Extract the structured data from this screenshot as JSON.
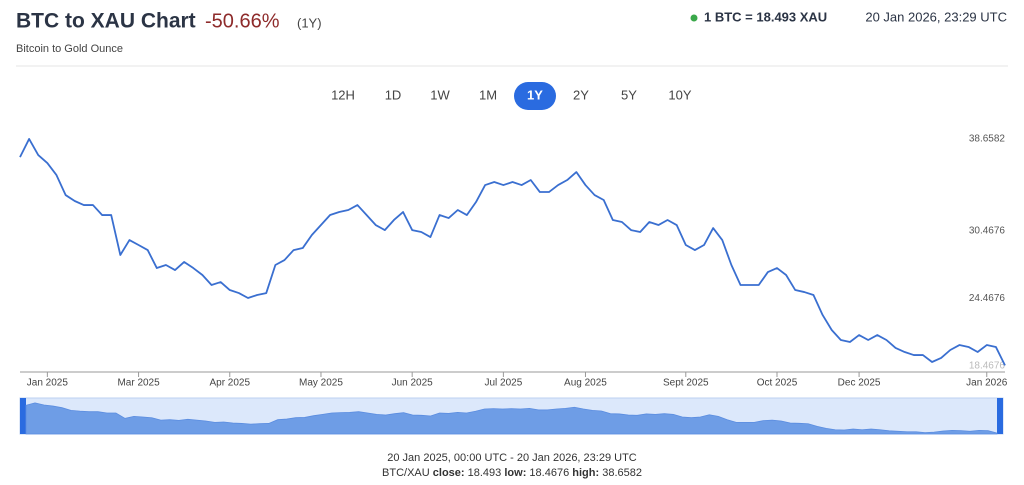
{
  "header": {
    "title": "BTC to XAU Chart",
    "change": "-50.66%",
    "period": "(1Y)",
    "subtitle": "Bitcoin to Gold Ounce",
    "rate": "1 BTC = 18.493 XAU",
    "timestamp": "20 Jan 2026, 23:29 UTC"
  },
  "ranges": {
    "buttons": [
      "12H",
      "1D",
      "1W",
      "1M",
      "1Y",
      "2Y",
      "5Y",
      "10Y"
    ],
    "selected": "1Y"
  },
  "chart_data": {
    "type": "line",
    "color": "#3a6fd0",
    "categories": [
      null,
      null,
      null,
      "Jan 2025",
      null,
      null,
      null,
      null,
      null,
      null,
      null,
      null,
      null,
      "Mar 2025",
      null,
      null,
      null,
      null,
      null,
      null,
      null,
      null,
      null,
      "Apr 2025",
      null,
      null,
      null,
      null,
      null,
      null,
      null,
      null,
      null,
      "May 2025",
      null,
      null,
      null,
      null,
      null,
      null,
      null,
      null,
      null,
      "Jun 2025",
      null,
      null,
      null,
      null,
      null,
      null,
      null,
      null,
      null,
      "Jul 2025",
      null,
      null,
      null,
      null,
      null,
      null,
      null,
      null,
      "Aug 2025",
      null,
      null,
      null,
      null,
      null,
      null,
      null,
      null,
      null,
      null,
      "Sept 2025",
      null,
      null,
      null,
      null,
      null,
      null,
      null,
      null,
      null,
      "Oct 2025",
      null,
      null,
      null,
      null,
      null,
      null,
      null,
      null,
      "Dec 2025",
      null,
      null,
      null,
      null,
      null,
      null,
      null,
      null,
      null,
      null,
      null,
      null,
      null,
      "Jan 2026",
      null,
      null
    ],
    "values": [
      37.04,
      38.66,
      37.22,
      36.51,
      35.44,
      33.66,
      33.13,
      32.77,
      32.77,
      31.88,
      31.88,
      28.32,
      29.65,
      29.21,
      28.76,
      27.16,
      27.43,
      26.98,
      27.7,
      27.16,
      26.54,
      25.65,
      25.91,
      25.2,
      24.93,
      24.49,
      24.76,
      24.93,
      27.43,
      27.87,
      28.76,
      28.94,
      30.1,
      30.99,
      31.88,
      32.15,
      32.33,
      32.77,
      31.88,
      30.99,
      30.54,
      31.44,
      32.15,
      30.54,
      30.37,
      29.92,
      31.88,
      31.61,
      32.33,
      31.88,
      33.04,
      34.55,
      34.82,
      34.55,
      34.82,
      34.55,
      35.0,
      33.93,
      33.93,
      34.55,
      35.0,
      35.71,
      34.55,
      33.66,
      33.22,
      31.44,
      31.26,
      30.54,
      30.37,
      31.26,
      30.99,
      31.44,
      30.99,
      29.21,
      28.76,
      29.21,
      30.72,
      29.65,
      27.43,
      25.65,
      25.65,
      25.65,
      26.8,
      27.16,
      26.54,
      25.2,
      25.02,
      24.76,
      22.98,
      21.64,
      20.75,
      20.57,
      21.19,
      20.75,
      21.19,
      20.75,
      20.04,
      19.68,
      19.41,
      19.41,
      18.79,
      19.15,
      19.86,
      20.3,
      20.13,
      19.68,
      20.3,
      20.13,
      18.493
    ],
    "ylim": [
      17.9,
      39.9
    ],
    "yticks": [
      18.4676,
      24.4676,
      30.4676,
      38.6582
    ],
    "grid": false
  },
  "footer": {
    "range": "20 Jan 2025, 00:00 UTC - 20 Jan 2026, 23:29 UTC",
    "pair": "BTC/XAU",
    "close_label": "close:",
    "close": "18.493",
    "low_label": "low:",
    "low": "18.4676",
    "high_label": "high:",
    "high": "38.6582"
  }
}
